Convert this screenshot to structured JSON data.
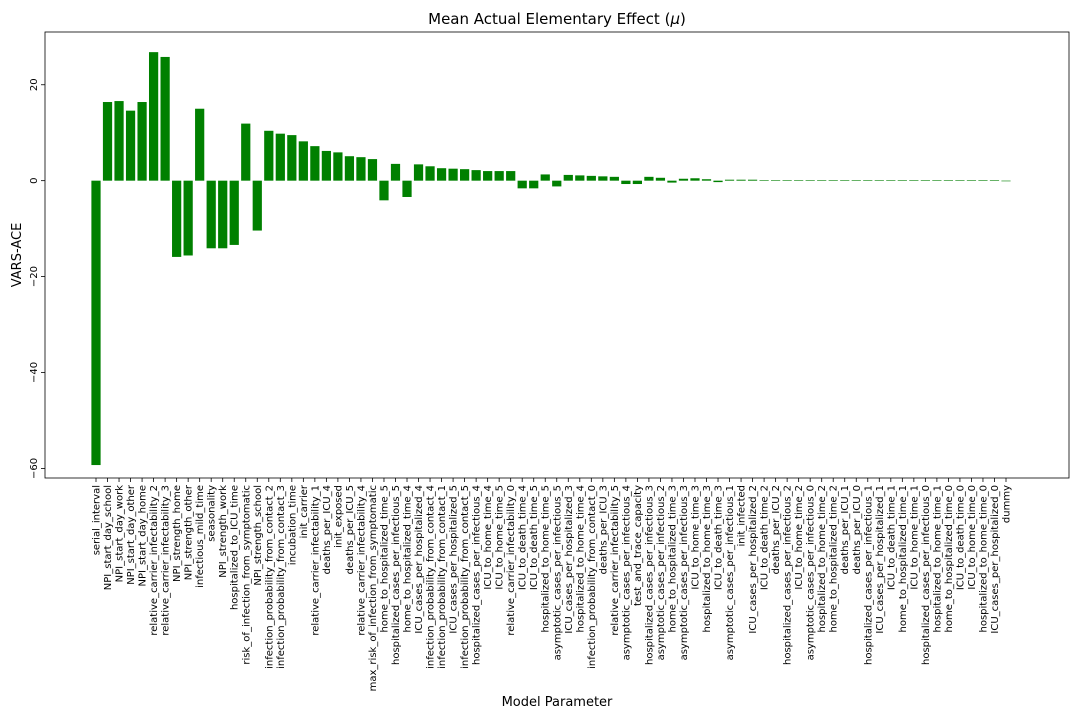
{
  "chart_data": {
    "type": "bar",
    "title": "Mean Actual Elementary Effect (",
    "title_symbol": "μ",
    "title_end": ")",
    "xlabel": "Model Parameter",
    "ylabel": "VARS-ACE",
    "ylim": [
      -62,
      31
    ],
    "yticks": [
      -60,
      -40,
      -20,
      0,
      20
    ],
    "bar_color": "#008000",
    "categories": [
      "serial_interval",
      "NPI_start_day_school",
      "NPI_start_day_work",
      "NPI_start_day_other",
      "NPI_start_day_home",
      "relative_carrier_infectability_2",
      "relative_carrier_infectability_3",
      "NPI_strength_home",
      "NPI_strength_other",
      "infectious_mild_time",
      "seasonality",
      "NPI_strength_work",
      "hospitalized_to_ICU_time",
      "risk_of_infection_from_symptomatic",
      "NPI_strength_school",
      "infection_probability_from_contact_2",
      "infection_probability_from_contact_3",
      "incubation_time",
      "init_carrier",
      "relative_carrier_infectability_1",
      "deaths_per_ICU_4",
      "init_exposed",
      "deaths_per_ICU_5",
      "relative_carrier_infectability_4",
      "max_risk_of_infection_from_symptomatic",
      "home_to_hospitalized_time_5",
      "hospitalized_cases_per_infectious_5",
      "home_to_hospitalized_time_4",
      "ICU_cases_per_hospitalized_4",
      "infection_probability_from_contact_4",
      "infection_probability_from_contact_1",
      "ICU_cases_per_hospitalized_5",
      "infection_probability_from_contact_5",
      "hospitalized_cases_per_infectious_4",
      "ICU_to_home_time_4",
      "ICU_to_home_time_5",
      "relative_carrier_infectability_0",
      "ICU_to_death_time_4",
      "ICU_to_death_time_5",
      "hospitalized_to_home_time_5",
      "asymptotic_cases_per_infectious_5",
      "ICU_cases_per_hospitalized_3",
      "hospitalized_to_home_time_4",
      "infection_probability_from_contact_0",
      "deaths_per_ICU_3",
      "relative_carrier_infectability_5",
      "asymptotic_cases_per_infectious_4",
      "test_and_trace_capacity",
      "hospitalized_cases_per_infectious_3",
      "asymptotic_cases_per_infectious_2",
      "home_to_hospitalized_time_3",
      "asymptotic_cases_per_infectious_3",
      "ICU_to_home_time_3",
      "hospitalized_to_home_time_3",
      "ICU_to_death_time_3",
      "asymptotic_cases_per_infectious_1",
      "init_infected",
      "ICU_cases_per_hospitalized_2",
      "ICU_to_death_time_2",
      "deaths_per_ICU_2",
      "hospitalized_cases_per_infectious_2",
      "ICU_to_home_time_2",
      "asymptotic_cases_per_infectious_0",
      "hospitalized_to_home_time_2",
      "home_to_hospitalized_time_2",
      "deaths_per_ICU_1",
      "deaths_per_ICU_0",
      "hospitalized_cases_per_infectious_1",
      "ICU_cases_per_hospitalized_1",
      "ICU_to_death_time_1",
      "home_to_hospitalized_time_1",
      "ICU_to_home_time_1",
      "hospitalized_cases_per_infectious_0",
      "hospitalized_to_home_time_1",
      "home_to_hospitalized_time_0",
      "ICU_to_death_time_0",
      "ICU_to_home_time_0",
      "hospitalized_to_home_time_0",
      "ICU_cases_per_hospitalized_0",
      "dummy"
    ],
    "values": [
      -59.3,
      16.4,
      16.6,
      14.6,
      16.4,
      26.8,
      25.8,
      -15.9,
      -15.6,
      15.0,
      -14.1,
      -14.1,
      -13.4,
      11.9,
      -10.4,
      10.4,
      9.8,
      9.5,
      8.2,
      7.2,
      6.2,
      5.9,
      5.1,
      4.9,
      4.5,
      -4.1,
      3.5,
      -3.4,
      3.4,
      3.0,
      2.6,
      2.5,
      2.4,
      2.2,
      2.0,
      2.0,
      2.0,
      -1.6,
      -1.6,
      1.3,
      -1.2,
      1.2,
      1.1,
      1.0,
      0.9,
      0.8,
      -0.7,
      -0.7,
      0.8,
      0.6,
      -0.4,
      0.4,
      0.5,
      0.3,
      -0.3,
      0.2,
      0.2,
      0.2,
      0.1,
      0.1,
      0.1,
      0.1,
      0.1,
      0.1,
      0.1,
      0.1,
      0.1,
      0.1,
      0.1,
      0.1,
      0.1,
      0.1,
      0.1,
      0.1,
      0.1,
      0.1,
      0.1,
      0.1,
      0.1,
      0.0
    ]
  }
}
